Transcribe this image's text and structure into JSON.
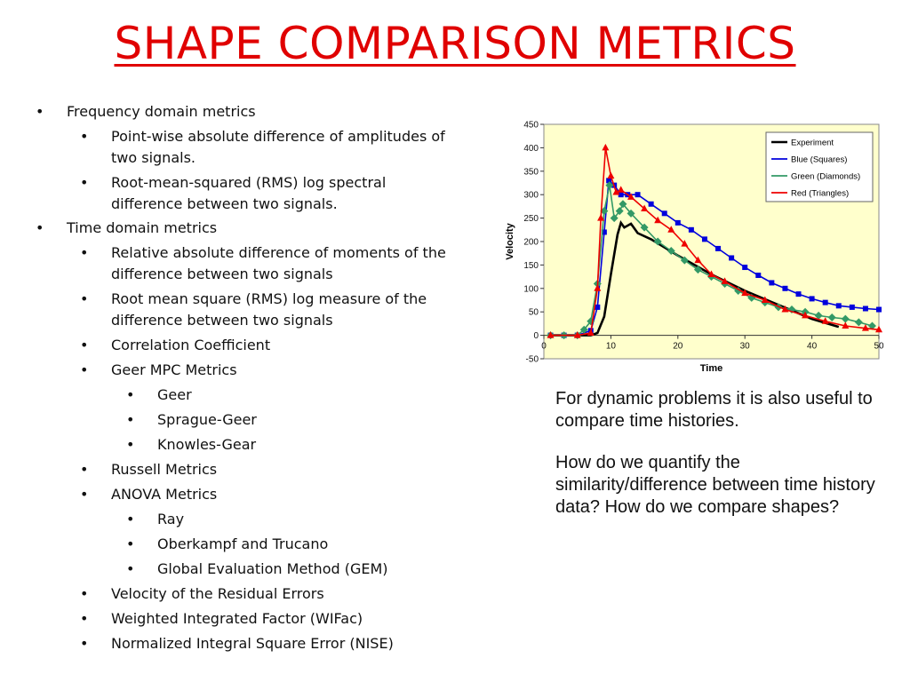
{
  "title": "SHAPE COMPARISON METRICS",
  "title_color": "#e00000",
  "bullets": [
    {
      "text": "Frequency domain metrics"
    },
    {
      "text": "Point-wise absolute difference of amplitudes of"
    },
    {
      "text": "two signals."
    },
    {
      "text": "Root-mean-squared (RMS) log spectral"
    },
    {
      "text": "difference between two signals."
    },
    {
      "text": "Time domain metrics"
    },
    {
      "text": "Relative absolute difference of moments of the"
    },
    {
      "text": "difference between two signals"
    },
    {
      "text": "Root mean square (RMS) log measure of the"
    },
    {
      "text": "difference between two signals"
    },
    {
      "text": "Correlation Coefficient"
    },
    {
      "text": "Geer MPC Metrics"
    },
    {
      "text": "Geer"
    },
    {
      "text": "Sprague-Geer"
    },
    {
      "text": "Knowles-Gear"
    },
    {
      "text": "Russell Metrics"
    },
    {
      "text": "ANOVA Metrics"
    },
    {
      "text": "Ray"
    },
    {
      "text": "Oberkampf and Trucano"
    },
    {
      "text": "Global Evaluation Method (GEM)"
    },
    {
      "text": "Velocity of the Residual Errors"
    },
    {
      "text": "Weighted Integrated Factor (WIFac)"
    },
    {
      "text": "Normalized Integral Square Error (NISE)"
    }
  ],
  "bullet_glyph": "•",
  "side_text": {
    "p1": "For dynamic problems it is also useful to compare time histories.",
    "p2": "How do we quantify the similarity/difference between time history data?  How do we compare shapes?"
  },
  "chart_data": {
    "type": "line",
    "xlabel": "Time",
    "ylabel": "Velocity",
    "xlim": [
      0,
      50
    ],
    "ylim": [
      -50,
      450
    ],
    "xticks": [
      0,
      10,
      20,
      30,
      40,
      50
    ],
    "yticks": [
      -50,
      0,
      50,
      100,
      150,
      200,
      250,
      300,
      350,
      400,
      450
    ],
    "background": "#ffffcc",
    "grid": false,
    "legend_position": "top-right",
    "series": [
      {
        "name": "Experiment",
        "color": "#000000",
        "marker": "none",
        "points": [
          [
            1,
            0
          ],
          [
            7,
            0
          ],
          [
            8,
            5
          ],
          [
            9,
            40
          ],
          [
            10,
            130
          ],
          [
            11,
            215
          ],
          [
            11.5,
            240
          ],
          [
            12,
            230
          ],
          [
            13,
            238
          ],
          [
            14,
            218
          ],
          [
            16,
            205
          ],
          [
            20,
            170
          ],
          [
            25,
            130
          ],
          [
            30,
            95
          ],
          [
            35,
            65
          ],
          [
            40,
            35
          ],
          [
            44,
            18
          ]
        ]
      },
      {
        "name": "Blue (Squares)",
        "color": "#0000dd",
        "marker": "square",
        "points": [
          [
            1,
            0
          ],
          [
            3,
            0
          ],
          [
            5,
            0
          ],
          [
            7,
            10
          ],
          [
            8,
            60
          ],
          [
            9,
            220
          ],
          [
            9.7,
            330
          ],
          [
            10.5,
            320
          ],
          [
            11.5,
            300
          ],
          [
            12.5,
            300
          ],
          [
            14,
            300
          ],
          [
            16,
            280
          ],
          [
            18,
            260
          ],
          [
            20,
            240
          ],
          [
            22,
            225
          ],
          [
            24,
            205
          ],
          [
            26,
            185
          ],
          [
            28,
            165
          ],
          [
            30,
            145
          ],
          [
            32,
            128
          ],
          [
            34,
            112
          ],
          [
            36,
            100
          ],
          [
            38,
            88
          ],
          [
            40,
            78
          ],
          [
            42,
            70
          ],
          [
            44,
            63
          ],
          [
            46,
            60
          ],
          [
            48,
            57
          ],
          [
            50,
            55
          ]
        ]
      },
      {
        "name": "Green (Diamonds)",
        "color": "#339966",
        "marker": "diamond",
        "points": [
          [
            1,
            0
          ],
          [
            3,
            0
          ],
          [
            5,
            0
          ],
          [
            6,
            12
          ],
          [
            7,
            30
          ],
          [
            8,
            110
          ],
          [
            9,
            265
          ],
          [
            9.8,
            320
          ],
          [
            10.5,
            250
          ],
          [
            11.3,
            265
          ],
          [
            11.8,
            280
          ],
          [
            13,
            260
          ],
          [
            15,
            230
          ],
          [
            17,
            200
          ],
          [
            19,
            180
          ],
          [
            21,
            160
          ],
          [
            23,
            140
          ],
          [
            25,
            125
          ],
          [
            27,
            110
          ],
          [
            29,
            95
          ],
          [
            31,
            80
          ],
          [
            33,
            70
          ],
          [
            35,
            60
          ],
          [
            37,
            55
          ],
          [
            39,
            50
          ],
          [
            41,
            42
          ],
          [
            43,
            38
          ],
          [
            45,
            35
          ],
          [
            47,
            28
          ],
          [
            49,
            20
          ]
        ]
      },
      {
        "name": "Red (Triangles)",
        "color": "#ee0000",
        "marker": "triangle",
        "points": [
          [
            1,
            0
          ],
          [
            5,
            0
          ],
          [
            7,
            5
          ],
          [
            8,
            100
          ],
          [
            8.5,
            250
          ],
          [
            9.2,
            400
          ],
          [
            10,
            340
          ],
          [
            10.8,
            305
          ],
          [
            11.5,
            310
          ],
          [
            13,
            295
          ],
          [
            15,
            270
          ],
          [
            17,
            245
          ],
          [
            19,
            225
          ],
          [
            21,
            195
          ],
          [
            23,
            160
          ],
          [
            25,
            130
          ],
          [
            27,
            115
          ],
          [
            30,
            90
          ],
          [
            33,
            75
          ],
          [
            36,
            55
          ],
          [
            39,
            42
          ],
          [
            42,
            30
          ],
          [
            45,
            20
          ],
          [
            48,
            15
          ],
          [
            50,
            12
          ]
        ]
      }
    ]
  }
}
